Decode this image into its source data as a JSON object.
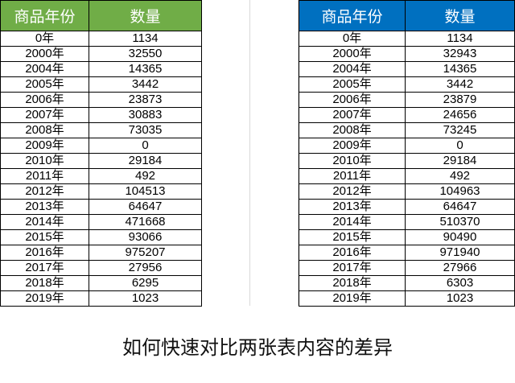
{
  "left_table": {
    "headers": [
      "商品年份",
      "数量"
    ],
    "rows": [
      [
        "0年",
        "1134"
      ],
      [
        "2000年",
        "32550"
      ],
      [
        "2004年",
        "14365"
      ],
      [
        "2005年",
        "3442"
      ],
      [
        "2006年",
        "23873"
      ],
      [
        "2007年",
        "30883"
      ],
      [
        "2008年",
        "73035"
      ],
      [
        "2009年",
        "0"
      ],
      [
        "2010年",
        "29184"
      ],
      [
        "2011年",
        "492"
      ],
      [
        "2012年",
        "104513"
      ],
      [
        "2013年",
        "64647"
      ],
      [
        "2014年",
        "471668"
      ],
      [
        "2015年",
        "93066"
      ],
      [
        "2016年",
        "975207"
      ],
      [
        "2017年",
        "27956"
      ],
      [
        "2018年",
        "6295"
      ],
      [
        "2019年",
        "1023"
      ]
    ]
  },
  "right_table": {
    "headers": [
      "商品年份",
      "数量"
    ],
    "rows": [
      [
        "0年",
        "1134"
      ],
      [
        "2000年",
        "32943"
      ],
      [
        "2004年",
        "14365"
      ],
      [
        "2005年",
        "3442"
      ],
      [
        "2006年",
        "23879"
      ],
      [
        "2007年",
        "24656"
      ],
      [
        "2008年",
        "73245"
      ],
      [
        "2009年",
        "0"
      ],
      [
        "2010年",
        "29184"
      ],
      [
        "2011年",
        "492"
      ],
      [
        "2012年",
        "104963"
      ],
      [
        "2013年",
        "64647"
      ],
      [
        "2014年",
        "510370"
      ],
      [
        "2015年",
        "90490"
      ],
      [
        "2016年",
        "971940"
      ],
      [
        "2017年",
        "27966"
      ],
      [
        "2018年",
        "6303"
      ],
      [
        "2019年",
        "1023"
      ]
    ]
  },
  "caption": "如何快速对比两张表内容的差异",
  "colors": {
    "left_header": "#70ad47",
    "right_header": "#0070c0"
  }
}
